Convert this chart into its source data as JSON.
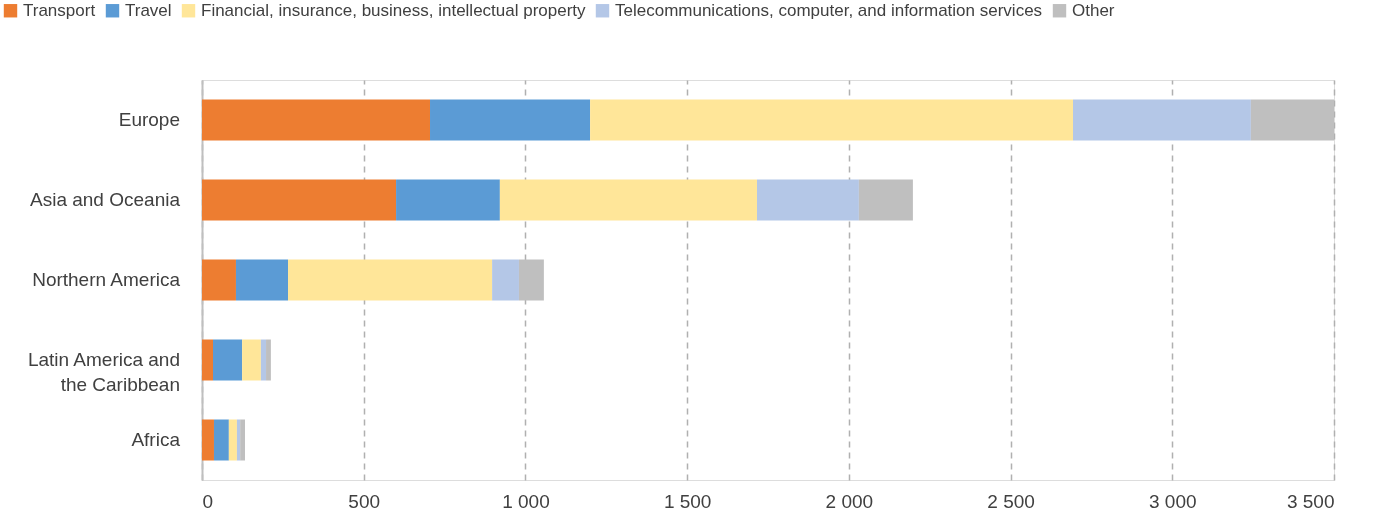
{
  "chart_data": {
    "type": "bar",
    "orientation": "horizontal",
    "stacked": true,
    "categories": [
      "Europe",
      "Asia and Oceania",
      "Northern America",
      "Latin America and the Caribbean",
      "Africa"
    ],
    "series": [
      {
        "name": "Transport",
        "color": "#ed7d31",
        "values": [
          705,
          600,
          105,
          34,
          37
        ]
      },
      {
        "name": "Travel",
        "color": "#5b9bd5",
        "values": [
          495,
          321,
          161,
          90,
          46
        ]
      },
      {
        "name": "Financial, insurance, business, intellectual property",
        "color": "#ffe699",
        "values": [
          1493,
          795,
          631,
          58,
          25
        ]
      },
      {
        "name": "Telecommunications, computer, and information services",
        "color": "#b4c7e7",
        "values": [
          550,
          315,
          83,
          16,
          10
        ]
      },
      {
        "name": "Other",
        "color": "#bfbfbf",
        "values": [
          257,
          167,
          77,
          15,
          15
        ]
      }
    ],
    "xlim": [
      0,
      3500
    ],
    "xticks": [
      0,
      500,
      {
        "value": 1000,
        "label": "1 000"
      },
      {
        "value": 1500,
        "label": "1 500"
      },
      {
        "value": 2000,
        "label": "2 000"
      },
      {
        "value": 2500,
        "label": "2 500"
      },
      {
        "value": 3000,
        "label": "3 000"
      },
      {
        "value": 3500,
        "label": "3 500"
      }
    ],
    "grid": "x",
    "legend": "top"
  }
}
